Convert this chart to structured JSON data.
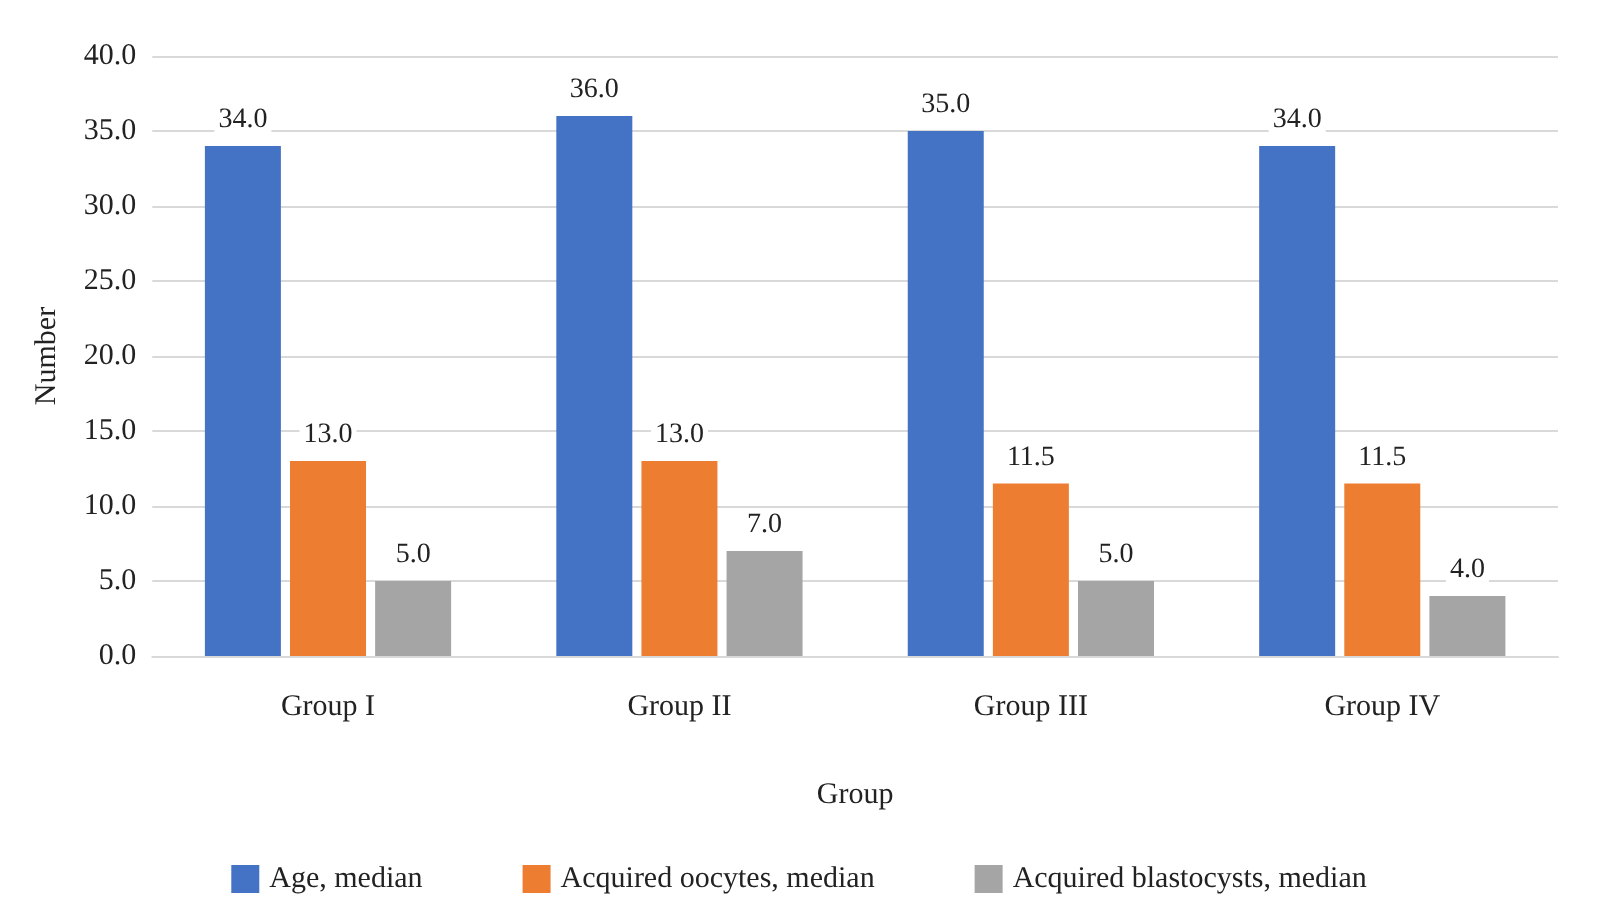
{
  "chart_data": {
    "type": "bar",
    "xlabel": "Group",
    "ylabel": "Number",
    "categories": [
      "Group I",
      "Group II",
      "Group III",
      "Group IV"
    ],
    "series": [
      {
        "name": "Age, median",
        "color": "#4472c4",
        "values": [
          34,
          36,
          35,
          34
        ],
        "value_labels": [
          "34.0",
          "36.0",
          "35.0",
          "34.0"
        ]
      },
      {
        "name": "Acquired oocytes, median",
        "color": "#ed7d31",
        "values": [
          13,
          13,
          11.5,
          11.5
        ],
        "value_labels": [
          "13.0",
          "13.0",
          "11.5",
          "11.5"
        ]
      },
      {
        "name": "Acquired blastocysts, median",
        "color": "#a5a5a5",
        "values": [
          5,
          7,
          5,
          4
        ],
        "value_labels": [
          "5.0",
          "7.0",
          "5.0",
          "4.0"
        ]
      }
    ],
    "ylim": [
      0,
      40
    ],
    "yticks": [
      {
        "value": 0,
        "label": "0.0"
      },
      {
        "value": 5,
        "label": "5.0"
      },
      {
        "value": 10,
        "label": "10.0"
      },
      {
        "value": 15,
        "label": "15.0"
      },
      {
        "value": 20,
        "label": "20.0"
      },
      {
        "value": 25,
        "label": "25.0"
      },
      {
        "value": 30,
        "label": "30.0"
      },
      {
        "value": 35,
        "label": "35.0"
      },
      {
        "value": 40,
        "label": "40.0"
      }
    ],
    "grid": "y",
    "legend": "bottom"
  }
}
